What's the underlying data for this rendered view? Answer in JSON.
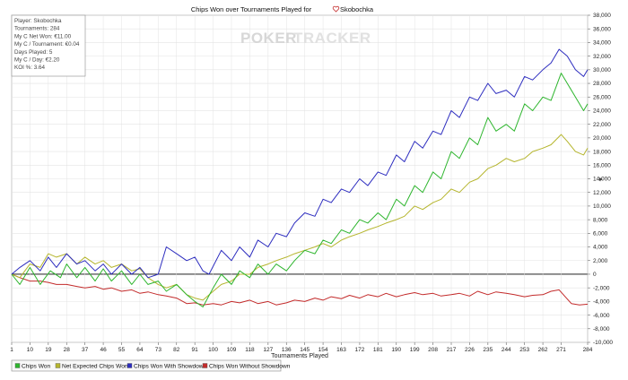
{
  "window": {
    "title": "Chips Won over Tournaments Played for",
    "player_name": "Skobochka",
    "watermark_poker": "POKER",
    "watermark_tracker": "TRACKER"
  },
  "info_box": [
    "Player: Skobochka",
    "Tournaments: 284",
    "My C Net Won: €11.00",
    "My C / Tournament: €0.04",
    "Days Played: 5",
    "My C / Day: €2.20",
    "KOI %: 3.64"
  ],
  "colors": {
    "chips_won": "#2db52d",
    "net_expected": "#b5b52d",
    "with_showdown": "#2d2dbf",
    "without_showdown": "#c32b2b",
    "grid": "#e3e3e3",
    "zero_line": "#000000"
  },
  "chart_data": {
    "type": "line",
    "title": "Chips Won over Tournaments Played for Skobochka",
    "xlabel": "Tournaments Played",
    "ylabel": "",
    "xlim": [
      1,
      284
    ],
    "ylim": [
      -10000,
      38000
    ],
    "x_ticks": [
      1,
      10,
      19,
      28,
      37,
      46,
      55,
      64,
      73,
      82,
      91,
      100,
      109,
      118,
      127,
      136,
      145,
      154,
      163,
      172,
      181,
      190,
      199,
      208,
      217,
      226,
      235,
      244,
      253,
      262,
      271,
      284
    ],
    "y_ticks": [
      -10000,
      -8000,
      -6000,
      -4000,
      -2000,
      0,
      2000,
      4000,
      6000,
      8000,
      10000,
      12000,
      14000,
      16000,
      18000,
      20000,
      22000,
      24000,
      26000,
      28000,
      30000,
      32000,
      34000,
      36000,
      38000
    ],
    "y_tick_labels": [
      "-10,000",
      "-8,000",
      "-6,000",
      "-4,000",
      "-2,000",
      "0",
      "2,000",
      "4,000",
      "6,000",
      "8,000",
      "10,000",
      "12,000",
      "14,000",
      "16,000",
      "18,000",
      "20,000",
      "22,000",
      "24,000",
      "26,000",
      "28,000",
      "30,000",
      "32,000",
      "34,000",
      "36,000",
      "38,000"
    ],
    "grid": true,
    "legend_position": "bottom-left",
    "series": [
      {
        "name": "Chips Won",
        "color": "#2db52d",
        "points": [
          [
            1,
            0
          ],
          [
            5,
            -1500
          ],
          [
            10,
            1000
          ],
          [
            15,
            -1500
          ],
          [
            20,
            500
          ],
          [
            25,
            -500
          ],
          [
            28,
            1500
          ],
          [
            33,
            -500
          ],
          [
            37,
            1000
          ],
          [
            42,
            -1000
          ],
          [
            46,
            800
          ],
          [
            50,
            -1000
          ],
          [
            55,
            500
          ],
          [
            60,
            -1500
          ],
          [
            64,
            0
          ],
          [
            68,
            -1500
          ],
          [
            73,
            -1000
          ],
          [
            77,
            -2500
          ],
          [
            82,
            -1500
          ],
          [
            87,
            -3000
          ],
          [
            91,
            -4000
          ],
          [
            95,
            -4800
          ],
          [
            100,
            -2000
          ],
          [
            104,
            0
          ],
          [
            109,
            -1500
          ],
          [
            113,
            500
          ],
          [
            118,
            -500
          ],
          [
            122,
            1500
          ],
          [
            127,
            0
          ],
          [
            131,
            1500
          ],
          [
            136,
            500
          ],
          [
            140,
            2000
          ],
          [
            145,
            3500
          ],
          [
            150,
            3000
          ],
          [
            154,
            5000
          ],
          [
            158,
            4500
          ],
          [
            163,
            6500
          ],
          [
            167,
            6000
          ],
          [
            172,
            8000
          ],
          [
            176,
            7500
          ],
          [
            181,
            9000
          ],
          [
            185,
            8000
          ],
          [
            190,
            11000
          ],
          [
            194,
            10000
          ],
          [
            199,
            13000
          ],
          [
            203,
            12000
          ],
          [
            208,
            15000
          ],
          [
            212,
            14000
          ],
          [
            217,
            18000
          ],
          [
            221,
            17000
          ],
          [
            226,
            20000
          ],
          [
            230,
            19000
          ],
          [
            235,
            23000
          ],
          [
            239,
            21000
          ],
          [
            244,
            22000
          ],
          [
            248,
            21000
          ],
          [
            253,
            25000
          ],
          [
            257,
            24000
          ],
          [
            262,
            26000
          ],
          [
            266,
            25500
          ],
          [
            271,
            29500
          ],
          [
            274,
            28000
          ],
          [
            278,
            26000
          ],
          [
            282,
            24000
          ],
          [
            284,
            25000
          ]
        ]
      },
      {
        "name": "Net Expected Chips Won",
        "color": "#b5b52d",
        "points": [
          [
            1,
            0
          ],
          [
            5,
            -500
          ],
          [
            10,
            1500
          ],
          [
            15,
            1000
          ],
          [
            19,
            3000
          ],
          [
            23,
            2500
          ],
          [
            28,
            3000
          ],
          [
            33,
            1500
          ],
          [
            37,
            2500
          ],
          [
            42,
            1500
          ],
          [
            46,
            2000
          ],
          [
            50,
            1000
          ],
          [
            55,
            1500
          ],
          [
            60,
            500
          ],
          [
            64,
            800
          ],
          [
            68,
            -500
          ],
          [
            73,
            -1500
          ],
          [
            77,
            -2000
          ],
          [
            82,
            -1500
          ],
          [
            87,
            -3000
          ],
          [
            91,
            -3500
          ],
          [
            95,
            -3800
          ],
          [
            100,
            -2500
          ],
          [
            104,
            -1500
          ],
          [
            109,
            -1000
          ],
          [
            113,
            0
          ],
          [
            118,
            0
          ],
          [
            122,
            1000
          ],
          [
            127,
            1500
          ],
          [
            131,
            2000
          ],
          [
            136,
            2500
          ],
          [
            140,
            3000
          ],
          [
            145,
            3500
          ],
          [
            150,
            4000
          ],
          [
            154,
            4500
          ],
          [
            158,
            4000
          ],
          [
            163,
            5000
          ],
          [
            167,
            5500
          ],
          [
            172,
            6000
          ],
          [
            176,
            6500
          ],
          [
            181,
            7000
          ],
          [
            185,
            7500
          ],
          [
            190,
            8000
          ],
          [
            194,
            8500
          ],
          [
            199,
            10000
          ],
          [
            203,
            9500
          ],
          [
            208,
            10500
          ],
          [
            212,
            11000
          ],
          [
            217,
            12500
          ],
          [
            221,
            12000
          ],
          [
            226,
            13500
          ],
          [
            230,
            14000
          ],
          [
            235,
            15500
          ],
          [
            239,
            16000
          ],
          [
            244,
            17000
          ],
          [
            248,
            16500
          ],
          [
            253,
            17000
          ],
          [
            257,
            18000
          ],
          [
            262,
            18500
          ],
          [
            266,
            19000
          ],
          [
            271,
            20500
          ],
          [
            274,
            19500
          ],
          [
            278,
            18000
          ],
          [
            282,
            17500
          ],
          [
            284,
            18500
          ]
        ]
      },
      {
        "name": "Chips Won With Showdown",
        "color": "#2d2dbf",
        "points": [
          [
            1,
            0
          ],
          [
            5,
            1000
          ],
          [
            10,
            2000
          ],
          [
            15,
            500
          ],
          [
            19,
            2500
          ],
          [
            23,
            1000
          ],
          [
            28,
            3000
          ],
          [
            33,
            1500
          ],
          [
            37,
            2000
          ],
          [
            42,
            500
          ],
          [
            46,
            1500
          ],
          [
            50,
            0
          ],
          [
            55,
            1500
          ],
          [
            60,
            0
          ],
          [
            64,
            1000
          ],
          [
            68,
            -500
          ],
          [
            73,
            0
          ],
          [
            77,
            4000
          ],
          [
            82,
            3000
          ],
          [
            87,
            2000
          ],
          [
            91,
            2500
          ],
          [
            95,
            500
          ],
          [
            98,
            0
          ],
          [
            104,
            3500
          ],
          [
            109,
            2000
          ],
          [
            113,
            4000
          ],
          [
            118,
            2500
          ],
          [
            122,
            5000
          ],
          [
            127,
            4000
          ],
          [
            131,
            6000
          ],
          [
            136,
            5500
          ],
          [
            140,
            7500
          ],
          [
            145,
            9000
          ],
          [
            150,
            8500
          ],
          [
            154,
            11000
          ],
          [
            158,
            10500
          ],
          [
            163,
            12500
          ],
          [
            167,
            12000
          ],
          [
            172,
            14000
          ],
          [
            176,
            13000
          ],
          [
            181,
            15000
          ],
          [
            185,
            14500
          ],
          [
            190,
            17500
          ],
          [
            194,
            16500
          ],
          [
            199,
            19500
          ],
          [
            203,
            18500
          ],
          [
            208,
            21000
          ],
          [
            212,
            20500
          ],
          [
            217,
            24000
          ],
          [
            221,
            23000
          ],
          [
            226,
            26000
          ],
          [
            230,
            25500
          ],
          [
            235,
            28000
          ],
          [
            239,
            26500
          ],
          [
            244,
            27000
          ],
          [
            248,
            26000
          ],
          [
            253,
            29000
          ],
          [
            257,
            28500
          ],
          [
            262,
            30000
          ],
          [
            266,
            31000
          ],
          [
            270,
            33000
          ],
          [
            274,
            32000
          ],
          [
            278,
            30000
          ],
          [
            282,
            29000
          ],
          [
            284,
            30000
          ]
        ]
      },
      {
        "name": "Chips Won Without Showdown",
        "color": "#c32b2b",
        "points": [
          [
            1,
            0
          ],
          [
            5,
            -500
          ],
          [
            10,
            -1000
          ],
          [
            15,
            -1000
          ],
          [
            19,
            -1200
          ],
          [
            23,
            -1500
          ],
          [
            28,
            -1500
          ],
          [
            33,
            -1800
          ],
          [
            37,
            -2000
          ],
          [
            42,
            -1800
          ],
          [
            46,
            -2200
          ],
          [
            50,
            -2000
          ],
          [
            55,
            -2500
          ],
          [
            60,
            -2300
          ],
          [
            64,
            -2800
          ],
          [
            68,
            -2600
          ],
          [
            73,
            -3000
          ],
          [
            77,
            -3200
          ],
          [
            82,
            -3500
          ],
          [
            87,
            -4300
          ],
          [
            91,
            -4200
          ],
          [
            95,
            -4500
          ],
          [
            100,
            -4300
          ],
          [
            104,
            -4500
          ],
          [
            109,
            -4000
          ],
          [
            113,
            -4200
          ],
          [
            118,
            -3800
          ],
          [
            122,
            -4300
          ],
          [
            127,
            -4000
          ],
          [
            131,
            -4500
          ],
          [
            136,
            -4200
          ],
          [
            140,
            -3800
          ],
          [
            145,
            -4000
          ],
          [
            150,
            -3500
          ],
          [
            154,
            -3800
          ],
          [
            158,
            -3300
          ],
          [
            163,
            -3600
          ],
          [
            167,
            -3100
          ],
          [
            172,
            -3500
          ],
          [
            176,
            -3000
          ],
          [
            181,
            -3300
          ],
          [
            185,
            -2800
          ],
          [
            190,
            -3300
          ],
          [
            194,
            -3000
          ],
          [
            199,
            -2700
          ],
          [
            203,
            -3000
          ],
          [
            208,
            -2800
          ],
          [
            212,
            -3200
          ],
          [
            217,
            -3000
          ],
          [
            221,
            -2800
          ],
          [
            226,
            -3200
          ],
          [
            230,
            -2500
          ],
          [
            235,
            -3000
          ],
          [
            239,
            -2600
          ],
          [
            244,
            -2800
          ],
          [
            248,
            -3000
          ],
          [
            253,
            -3300
          ],
          [
            257,
            -3100
          ],
          [
            262,
            -3000
          ],
          [
            266,
            -2500
          ],
          [
            270,
            -2300
          ],
          [
            273,
            -3300
          ],
          [
            276,
            -4300
          ],
          [
            280,
            -4500
          ],
          [
            284,
            -4400
          ]
        ]
      }
    ]
  }
}
